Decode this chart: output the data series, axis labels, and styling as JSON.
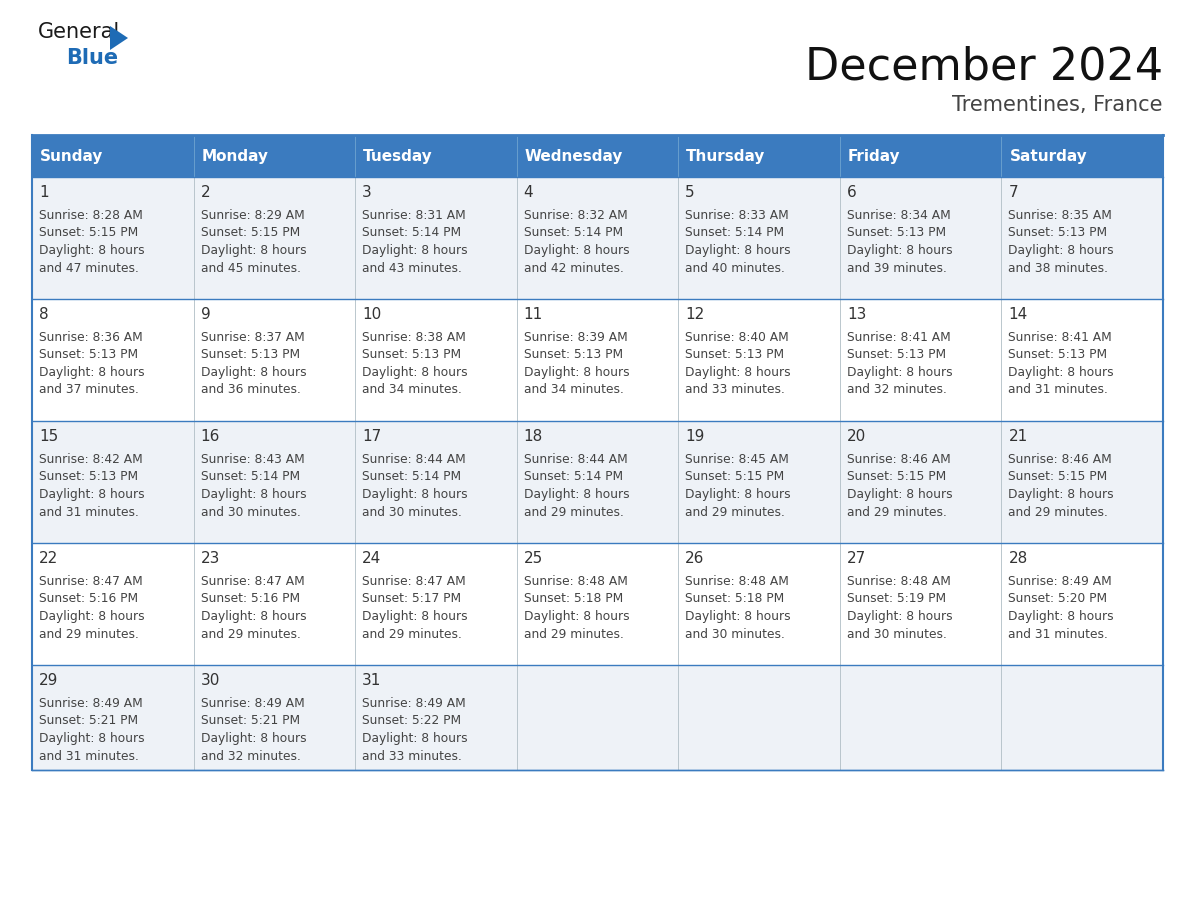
{
  "title": "December 2024",
  "subtitle": "Trementines, France",
  "days_of_week": [
    "Sunday",
    "Monday",
    "Tuesday",
    "Wednesday",
    "Thursday",
    "Friday",
    "Saturday"
  ],
  "header_bg": "#3b7bbf",
  "header_text_color": "#ffffff",
  "row_bg_light": "#eef2f7",
  "row_bg_white": "#ffffff",
  "grid_line_color": "#3b7bbf",
  "sep_line_color": "#9ab8d8",
  "day_number_color": "#333333",
  "cell_text_color": "#444444",
  "logo_general_color": "#1a1a1a",
  "logo_blue_color": "#1e6bb5",
  "title_color": "#111111",
  "subtitle_color": "#444444",
  "calendar_data": [
    [
      {
        "day": 1,
        "sunrise": "8:28 AM",
        "sunset": "5:15 PM",
        "daylight_h": "8 hours",
        "daylight_m": "and 47 minutes."
      },
      {
        "day": 2,
        "sunrise": "8:29 AM",
        "sunset": "5:15 PM",
        "daylight_h": "8 hours",
        "daylight_m": "and 45 minutes."
      },
      {
        "day": 3,
        "sunrise": "8:31 AM",
        "sunset": "5:14 PM",
        "daylight_h": "8 hours",
        "daylight_m": "and 43 minutes."
      },
      {
        "day": 4,
        "sunrise": "8:32 AM",
        "sunset": "5:14 PM",
        "daylight_h": "8 hours",
        "daylight_m": "and 42 minutes."
      },
      {
        "day": 5,
        "sunrise": "8:33 AM",
        "sunset": "5:14 PM",
        "daylight_h": "8 hours",
        "daylight_m": "and 40 minutes."
      },
      {
        "day": 6,
        "sunrise": "8:34 AM",
        "sunset": "5:13 PM",
        "daylight_h": "8 hours",
        "daylight_m": "and 39 minutes."
      },
      {
        "day": 7,
        "sunrise": "8:35 AM",
        "sunset": "5:13 PM",
        "daylight_h": "8 hours",
        "daylight_m": "and 38 minutes."
      }
    ],
    [
      {
        "day": 8,
        "sunrise": "8:36 AM",
        "sunset": "5:13 PM",
        "daylight_h": "8 hours",
        "daylight_m": "and 37 minutes."
      },
      {
        "day": 9,
        "sunrise": "8:37 AM",
        "sunset": "5:13 PM",
        "daylight_h": "8 hours",
        "daylight_m": "and 36 minutes."
      },
      {
        "day": 10,
        "sunrise": "8:38 AM",
        "sunset": "5:13 PM",
        "daylight_h": "8 hours",
        "daylight_m": "and 34 minutes."
      },
      {
        "day": 11,
        "sunrise": "8:39 AM",
        "sunset": "5:13 PM",
        "daylight_h": "8 hours",
        "daylight_m": "and 34 minutes."
      },
      {
        "day": 12,
        "sunrise": "8:40 AM",
        "sunset": "5:13 PM",
        "daylight_h": "8 hours",
        "daylight_m": "and 33 minutes."
      },
      {
        "day": 13,
        "sunrise": "8:41 AM",
        "sunset": "5:13 PM",
        "daylight_h": "8 hours",
        "daylight_m": "and 32 minutes."
      },
      {
        "day": 14,
        "sunrise": "8:41 AM",
        "sunset": "5:13 PM",
        "daylight_h": "8 hours",
        "daylight_m": "and 31 minutes."
      }
    ],
    [
      {
        "day": 15,
        "sunrise": "8:42 AM",
        "sunset": "5:13 PM",
        "daylight_h": "8 hours",
        "daylight_m": "and 31 minutes."
      },
      {
        "day": 16,
        "sunrise": "8:43 AM",
        "sunset": "5:14 PM",
        "daylight_h": "8 hours",
        "daylight_m": "and 30 minutes."
      },
      {
        "day": 17,
        "sunrise": "8:44 AM",
        "sunset": "5:14 PM",
        "daylight_h": "8 hours",
        "daylight_m": "and 30 minutes."
      },
      {
        "day": 18,
        "sunrise": "8:44 AM",
        "sunset": "5:14 PM",
        "daylight_h": "8 hours",
        "daylight_m": "and 29 minutes."
      },
      {
        "day": 19,
        "sunrise": "8:45 AM",
        "sunset": "5:15 PM",
        "daylight_h": "8 hours",
        "daylight_m": "and 29 minutes."
      },
      {
        "day": 20,
        "sunrise": "8:46 AM",
        "sunset": "5:15 PM",
        "daylight_h": "8 hours",
        "daylight_m": "and 29 minutes."
      },
      {
        "day": 21,
        "sunrise": "8:46 AM",
        "sunset": "5:15 PM",
        "daylight_h": "8 hours",
        "daylight_m": "and 29 minutes."
      }
    ],
    [
      {
        "day": 22,
        "sunrise": "8:47 AM",
        "sunset": "5:16 PM",
        "daylight_h": "8 hours",
        "daylight_m": "and 29 minutes."
      },
      {
        "day": 23,
        "sunrise": "8:47 AM",
        "sunset": "5:16 PM",
        "daylight_h": "8 hours",
        "daylight_m": "and 29 minutes."
      },
      {
        "day": 24,
        "sunrise": "8:47 AM",
        "sunset": "5:17 PM",
        "daylight_h": "8 hours",
        "daylight_m": "and 29 minutes."
      },
      {
        "day": 25,
        "sunrise": "8:48 AM",
        "sunset": "5:18 PM",
        "daylight_h": "8 hours",
        "daylight_m": "and 29 minutes."
      },
      {
        "day": 26,
        "sunrise": "8:48 AM",
        "sunset": "5:18 PM",
        "daylight_h": "8 hours",
        "daylight_m": "and 30 minutes."
      },
      {
        "day": 27,
        "sunrise": "8:48 AM",
        "sunset": "5:19 PM",
        "daylight_h": "8 hours",
        "daylight_m": "and 30 minutes."
      },
      {
        "day": 28,
        "sunrise": "8:49 AM",
        "sunset": "5:20 PM",
        "daylight_h": "8 hours",
        "daylight_m": "and 31 minutes."
      }
    ],
    [
      {
        "day": 29,
        "sunrise": "8:49 AM",
        "sunset": "5:21 PM",
        "daylight_h": "8 hours",
        "daylight_m": "and 31 minutes."
      },
      {
        "day": 30,
        "sunrise": "8:49 AM",
        "sunset": "5:21 PM",
        "daylight_h": "8 hours",
        "daylight_m": "and 32 minutes."
      },
      {
        "day": 31,
        "sunrise": "8:49 AM",
        "sunset": "5:22 PM",
        "daylight_h": "8 hours",
        "daylight_m": "and 33 minutes."
      },
      null,
      null,
      null,
      null
    ]
  ],
  "fig_width": 11.88,
  "fig_height": 9.18,
  "dpi": 100
}
